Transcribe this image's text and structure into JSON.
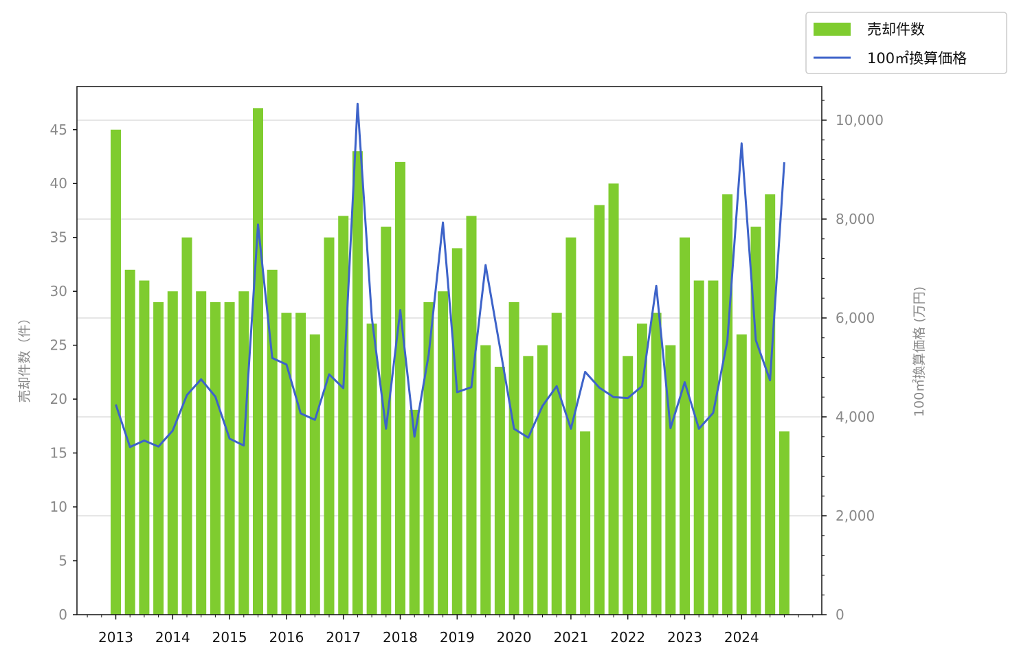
{
  "chart_data": {
    "type": "bar",
    "x_ticks": [
      "2013",
      "2014",
      "2015",
      "2016",
      "2017",
      "2018",
      "2019",
      "2020",
      "2021",
      "2022",
      "2023",
      "2024"
    ],
    "ylabel": "売却件数（件）",
    "ylabel_right": "100㎡換算価格 (万円)",
    "ylim": [
      0,
      49
    ],
    "ylim_right": [
      0,
      10680
    ],
    "yticks_left": [
      "0",
      "5",
      "10",
      "15",
      "20",
      "25",
      "30",
      "35",
      "40",
      "45"
    ],
    "yticks_right": [
      "0",
      "2,000",
      "4,000",
      "6,000",
      "8,000",
      "10,000"
    ],
    "grid": "horizontal (right axis)",
    "legend_position": "top-right",
    "series": [
      {
        "name": "売却件数",
        "axis": "left",
        "kind": "bar",
        "color": "#7FCC2F",
        "values": [
          45,
          32,
          31,
          29,
          30,
          35,
          30,
          29,
          29,
          30,
          47,
          32,
          28,
          28,
          26,
          35,
          37,
          43,
          27,
          36,
          42,
          19,
          29,
          30,
          34,
          37,
          25,
          23,
          29,
          24,
          25,
          28,
          35,
          17,
          38,
          40,
          24,
          27,
          28,
          25,
          35,
          31,
          31,
          39,
          26,
          36,
          39,
          17
        ]
      },
      {
        "name": "100㎡換算価格",
        "axis": "right",
        "kind": "line",
        "color": "#3D63C9",
        "values": [
          4250,
          3390,
          3520,
          3400,
          3720,
          4440,
          4760,
          4410,
          3560,
          3420,
          7890,
          5190,
          5060,
          4070,
          3940,
          4860,
          4580,
          10330,
          6010,
          3760,
          6160,
          3600,
          5260,
          7930,
          4500,
          4600,
          7070,
          5420,
          3760,
          3580,
          4220,
          4620,
          3760,
          4910,
          4590,
          4400,
          4380,
          4620,
          6650,
          3770,
          4700,
          3760,
          4080,
          5540,
          9530,
          5550,
          4740,
          9150
        ]
      }
    ]
  }
}
